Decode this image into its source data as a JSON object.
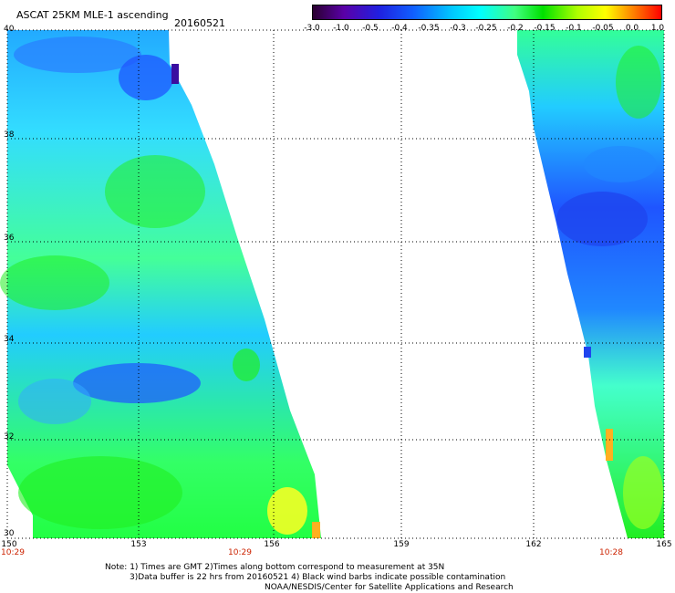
{
  "header": {
    "title": "ASCAT 25KM MLE-1 ascending",
    "date": "20160521"
  },
  "colorbar": {
    "ticks": [
      "-3.0",
      "-1.0",
      "-0.5",
      "-0.4",
      "-0.35",
      "-0.3",
      "-0.25",
      "-0.2",
      "-0.15",
      "-0.1",
      "-0.05",
      "0.0",
      "1.0"
    ],
    "colors": [
      "#2a0030",
      "#5a00a8",
      "#2020e0",
      "#1060ff",
      "#00c8ff",
      "#00ffff",
      "#40ff80",
      "#00e000",
      "#b0ff00",
      "#ffff00",
      "#ff9000",
      "#ff0000"
    ]
  },
  "axes": {
    "x_ticks": [
      "150",
      "153",
      "156",
      "159",
      "162",
      "165"
    ],
    "y_ticks": [
      "40",
      "38",
      "36",
      "34",
      "32",
      "30"
    ],
    "grid": "dotted"
  },
  "swath_times": [
    "10:29",
    "10:29",
    "10:28"
  ],
  "notes": {
    "line1": "Note: 1) Times are GMT 2)Times along bottom correspond to measurement at 35N",
    "line2": "3)Data buffer is 22 hrs from 20160521 4) Black wind barbs indicate possible contamination",
    "line3": "NOAA/NESDIS/Center for Satellite Applications and Research"
  }
}
